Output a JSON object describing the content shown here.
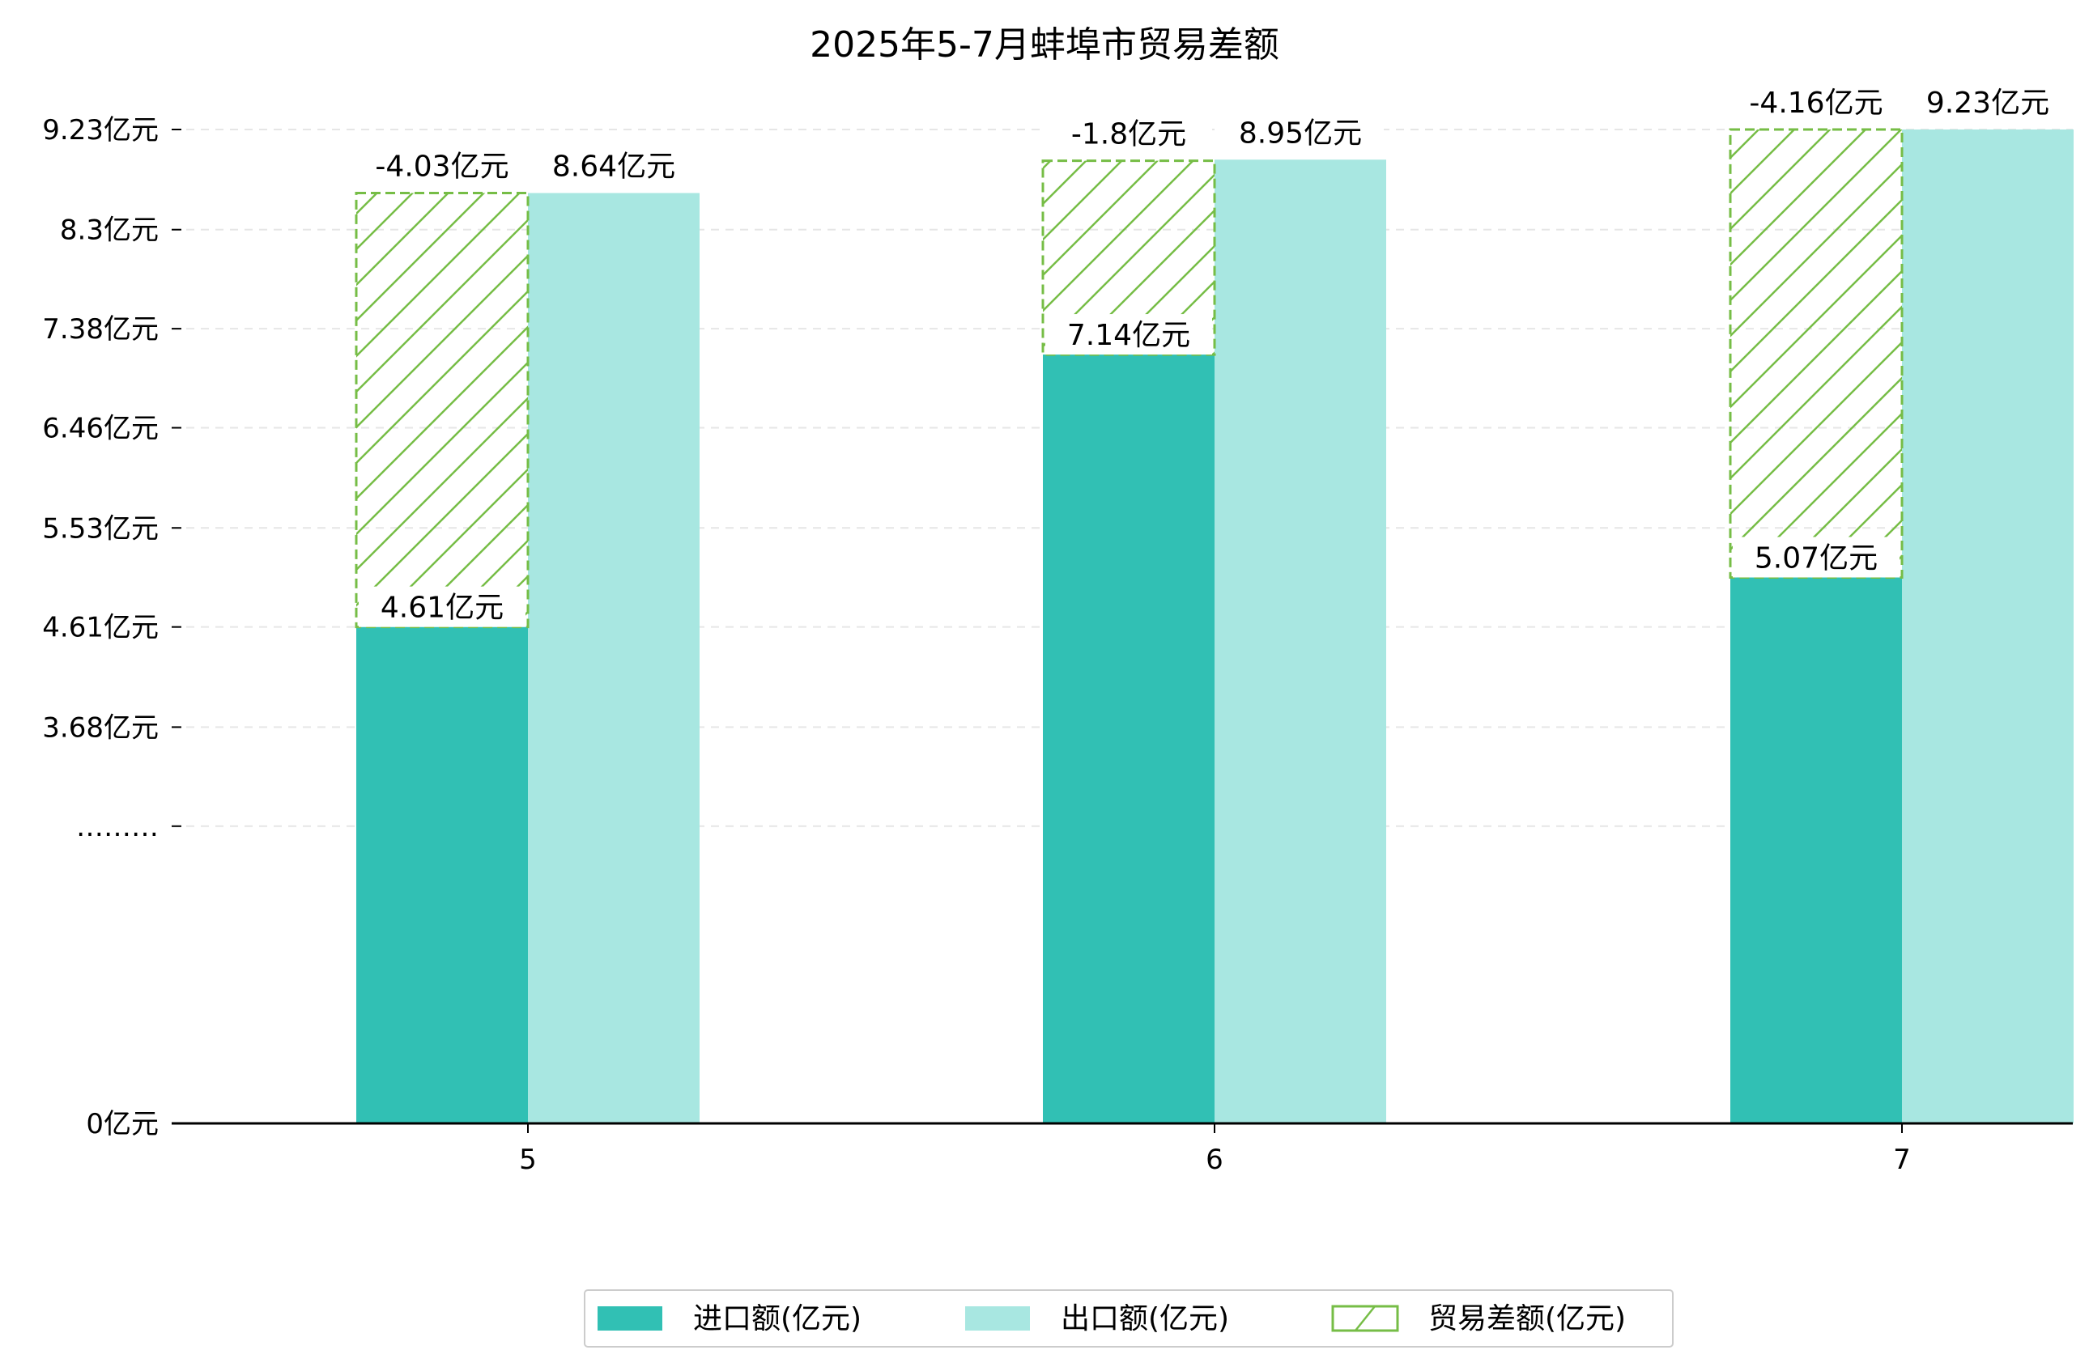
{
  "chart_data": {
    "type": "bar",
    "title": "2025年5-7月蚌埠市贸易差额",
    "categories": [
      "5",
      "6",
      "7"
    ],
    "series": [
      {
        "name": "进口额(亿元)",
        "values": [
          4.61,
          7.14,
          5.07
        ],
        "labels": [
          "4.61亿元",
          "7.14亿元",
          "5.07亿元"
        ],
        "color": "#31c0b4"
      },
      {
        "name": "出口额(亿元)",
        "values": [
          8.64,
          8.95,
          9.23
        ],
        "labels": [
          "8.64亿元",
          "8.95亿元",
          "9.23亿元"
        ],
        "color": "#a8e7e1"
      },
      {
        "name": "贸易差额(亿元)",
        "values": [
          -4.03,
          -1.8,
          -4.16
        ],
        "labels": [
          "-4.03亿元",
          "-1.8亿元",
          "-4.16亿元"
        ],
        "color": "#76bd46"
      }
    ],
    "yaxis": {
      "ticks": [
        {
          "value": 0,
          "label": "0亿元"
        },
        {
          "value": 2.76,
          "label": "………"
        },
        {
          "value": 3.68,
          "label": "3.68亿元"
        },
        {
          "value": 4.61,
          "label": "4.61亿元"
        },
        {
          "value": 5.53,
          "label": "5.53亿元"
        },
        {
          "value": 6.46,
          "label": "6.46亿元"
        },
        {
          "value": 7.38,
          "label": "7.38亿元"
        },
        {
          "value": 8.3,
          "label": "8.3亿元"
        },
        {
          "value": 9.23,
          "label": "9.23亿元"
        }
      ],
      "ylim": [
        0,
        9.23
      ],
      "grid": true
    },
    "legend": {
      "position": "bottom-center"
    }
  }
}
